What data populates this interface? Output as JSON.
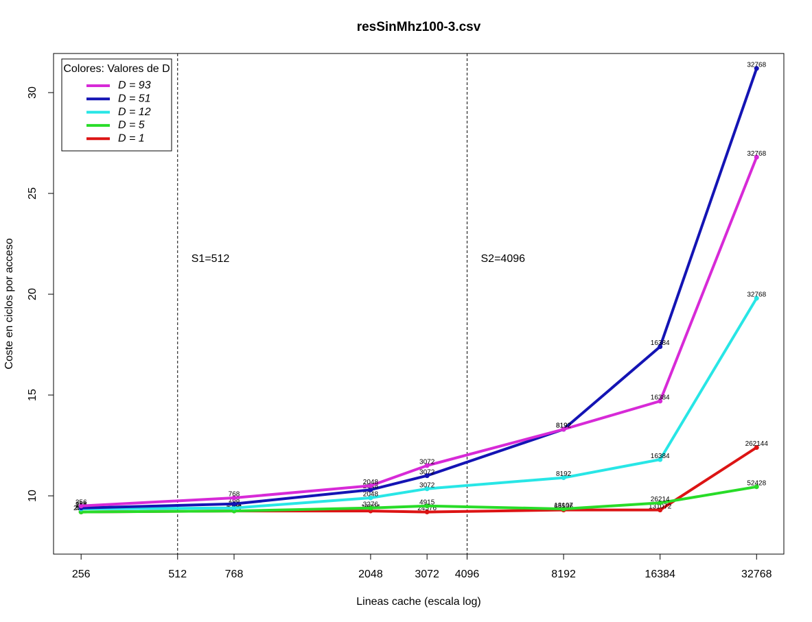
{
  "chart_data": {
    "type": "line",
    "title": "resSinMhz100-3.csv",
    "x_label": "Lineas cache (escala log)",
    "y_label": "Coste en ciclos por acceso",
    "x_log": true,
    "x": [
      256,
      768,
      2048,
      3072,
      8192,
      16384,
      32768
    ],
    "xlim": [
      210,
      39860
    ],
    "xticks": [
      256,
      512,
      768,
      2048,
      3072,
      4096,
      8192,
      16384,
      32768
    ],
    "ylim": [
      7.11,
      31.94
    ],
    "yticks": [
      10,
      15,
      20,
      25,
      30
    ],
    "vlines": [
      {
        "x": 512,
        "label": "S1=512"
      },
      {
        "x": 4096,
        "label": "S2=4096"
      }
    ],
    "legend_title": "Colores: Valores de D",
    "legend_position": "top-left",
    "series": [
      {
        "name": "D = 93",
        "color": "#d72ad7",
        "values": [
          9.5,
          9.9,
          10.5,
          11.5,
          13.3,
          14.7,
          26.8
        ],
        "point_labels": [
          "256",
          "768",
          "2048",
          "3072",
          "8192",
          "16384",
          "32768"
        ]
      },
      {
        "name": "D = 51",
        "color": "#1414b4",
        "values": [
          9.4,
          9.6,
          10.3,
          11.0,
          13.3,
          17.4,
          31.2
        ],
        "point_labels": [
          "256",
          "768",
          "2048",
          "3072",
          "8192",
          "16384",
          "32768"
        ]
      },
      {
        "name": "D = 12",
        "color": "#28e6e6",
        "values": [
          9.35,
          9.4,
          9.9,
          10.35,
          10.9,
          11.8,
          19.8
        ],
        "point_labels": [
          "256",
          "768",
          "2048",
          "3072",
          "8192",
          "16384",
          "32768"
        ]
      },
      {
        "name": "D = 5",
        "color": "#28dc28",
        "values": [
          9.2,
          9.25,
          9.4,
          9.5,
          9.35,
          9.65,
          10.45
        ],
        "point_labels": [
          "409",
          "1228",
          "3276",
          "4915",
          "13107",
          "26214",
          "52428"
        ]
      },
      {
        "name": "D = 1",
        "color": "#dc1414",
        "values": [
          9.2,
          9.25,
          9.25,
          9.2,
          9.3,
          9.3,
          12.4
        ],
        "point_labels": [
          "2048",
          "6144",
          "16384",
          "24576",
          "65536",
          "131072",
          "262144"
        ]
      }
    ]
  }
}
